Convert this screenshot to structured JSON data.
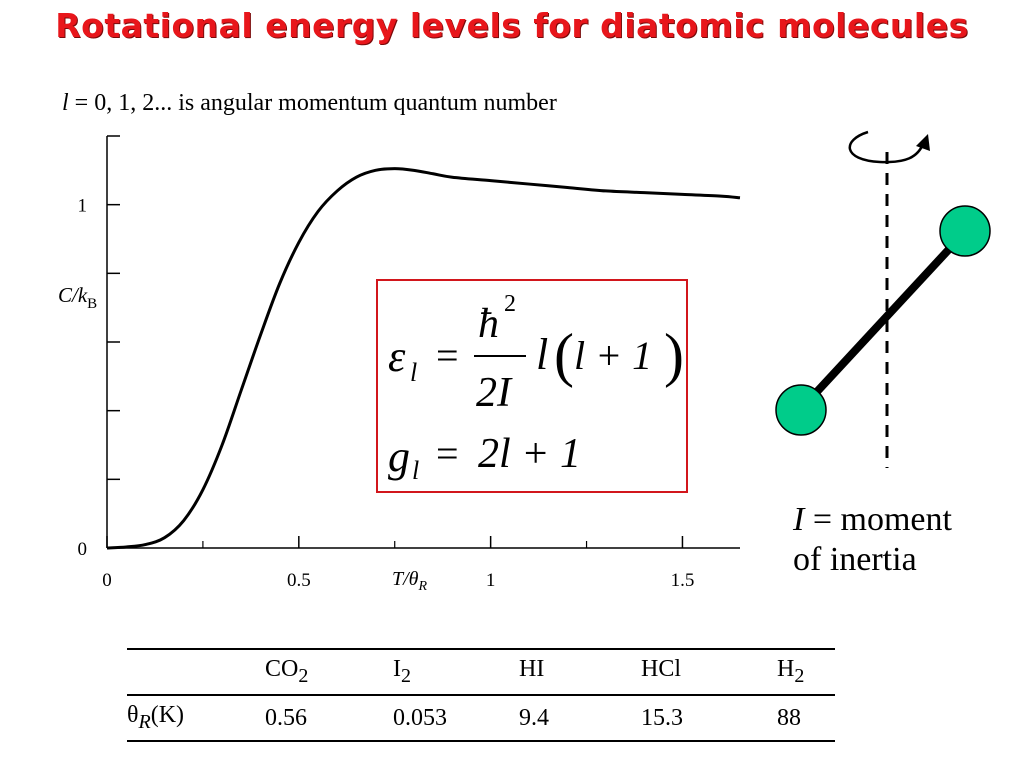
{
  "slide": {
    "title": "Rotational energy levels for diatomic molecules",
    "subtitle_var": "l",
    "subtitle_rest": " = 0, 1, 2... is angular momentum quantum number"
  },
  "formula": {
    "energy_lhs": "ε",
    "energy_sub": "l",
    "equals": "=",
    "hbar": "ħ",
    "hbar_exp": "2",
    "denominator": "2I",
    "factor": "l",
    "paren_expr": "l + 1",
    "degeneracy_lhs": "g",
    "degeneracy_sub": "l",
    "degeneracy_rhs": "2l + 1"
  },
  "diagram": {
    "moment_var": "I",
    "moment_line1": " = moment",
    "moment_line2": "of inertia",
    "atom_color": "#00cc8a"
  },
  "chart_data": {
    "type": "line",
    "xlabel": "T/θR",
    "ylabel": "C/kB",
    "xlim": [
      0,
      1.65
    ],
    "ylim": [
      0,
      1.2
    ],
    "x_ticks": [
      "0",
      "0.5",
      "1",
      "1.5"
    ],
    "y_ticks": [
      "0",
      "1"
    ],
    "x_tick_values": [
      0,
      0.5,
      1,
      1.5
    ],
    "y_tick_values": [
      0,
      1
    ],
    "grid": false,
    "series": [
      {
        "x": [
          0,
          0.05,
          0.1,
          0.15,
          0.2,
          0.25,
          0.3,
          0.35,
          0.4,
          0.45,
          0.5,
          0.55,
          0.6,
          0.65,
          0.7,
          0.75,
          0.8,
          0.85,
          0.9,
          1.0,
          1.1,
          1.2,
          1.3,
          1.4,
          1.5,
          1.6,
          1.65
        ],
        "y": [
          0,
          0.003,
          0.01,
          0.03,
          0.08,
          0.17,
          0.3,
          0.46,
          0.62,
          0.77,
          0.89,
          0.98,
          1.04,
          1.08,
          1.1,
          1.105,
          1.1,
          1.09,
          1.08,
          1.07,
          1.06,
          1.05,
          1.04,
          1.035,
          1.03,
          1.025,
          1.02
        ]
      }
    ]
  },
  "table": {
    "molecules": [
      {
        "base": "CO",
        "sub": "2"
      },
      {
        "base": "I",
        "sub": "2"
      },
      {
        "base": "HI",
        "sub": ""
      },
      {
        "base": "HCl",
        "sub": ""
      },
      {
        "base": "H",
        "sub": "2"
      }
    ],
    "row_label_base": "θ",
    "row_label_sub": "R",
    "row_label_unit": "(K)",
    "values": [
      "0.56",
      "0.053",
      "9.4",
      "15.3",
      "88"
    ]
  }
}
